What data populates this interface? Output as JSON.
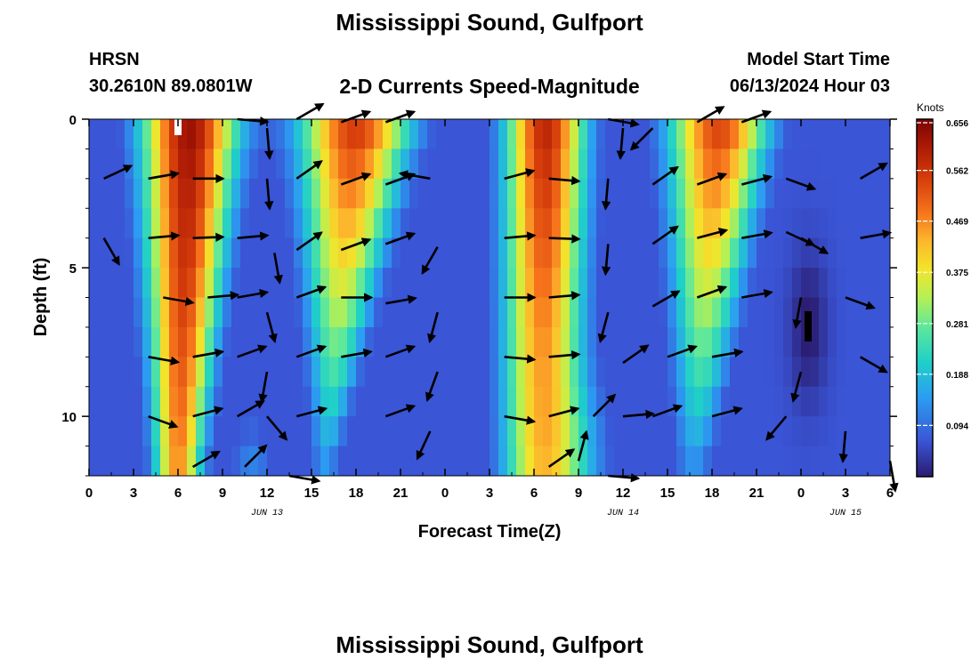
{
  "page": {
    "title": "Mississippi Sound, Gulfport",
    "station": "HRSN",
    "coords": "30.2610N  89.0801W",
    "subtitle": "2-D Currents Speed-Magnitude",
    "model_label": "Model Start Time",
    "model_time": "06/13/2024 Hour 03",
    "footer_title": "Mississippi Sound, Gulfport"
  },
  "chart_data": {
    "type": "heatmap",
    "title": "2-D Currents Speed-Magnitude",
    "xlabel": "Forecast Time(Z)",
    "ylabel": "Depth (ft)",
    "x_ticks": [
      {
        "hour": 0,
        "label": "0"
      },
      {
        "hour": 3,
        "label": "3"
      },
      {
        "hour": 6,
        "label": "6"
      },
      {
        "hour": 9,
        "label": "9"
      },
      {
        "hour": 12,
        "label": "12"
      },
      {
        "hour": 15,
        "label": "15"
      },
      {
        "hour": 18,
        "label": "18"
      },
      {
        "hour": 21,
        "label": "21"
      },
      {
        "hour": 24,
        "label": "0"
      },
      {
        "hour": 27,
        "label": "3"
      },
      {
        "hour": 30,
        "label": "6"
      },
      {
        "hour": 33,
        "label": "9"
      },
      {
        "hour": 36,
        "label": "12"
      },
      {
        "hour": 39,
        "label": "15"
      },
      {
        "hour": 42,
        "label": "18"
      },
      {
        "hour": 45,
        "label": "21"
      },
      {
        "hour": 48,
        "label": "0"
      },
      {
        "hour": 51,
        "label": "3"
      },
      {
        "hour": 54,
        "label": "6"
      }
    ],
    "date_labels": [
      {
        "hour": 12,
        "label": "JUN 13"
      },
      {
        "hour": 36,
        "label": "JUN 14"
      },
      {
        "hour": 51,
        "label": "JUN 15"
      }
    ],
    "y_ticks": [
      0,
      5,
      10
    ],
    "xlim": [
      0,
      54
    ],
    "ylim": [
      0,
      12
    ],
    "colorbar": {
      "unit": "Knots",
      "min": 0,
      "max": 0.656,
      "ticks": [
        "0.656",
        "0.562",
        "0.469",
        "0.375",
        "0.281",
        "0.188",
        "0.094"
      ],
      "tick_values": [
        0.656,
        0.562,
        0.469,
        0.375,
        0.281,
        0.188,
        0.094
      ]
    },
    "vectors": [
      {
        "t": 1,
        "d": 2,
        "dir": 65
      },
      {
        "t": 4,
        "d": 2,
        "dir": 80
      },
      {
        "t": 7,
        "d": 2,
        "dir": 90
      },
      {
        "t": 10,
        "d": 0,
        "dir": 95
      },
      {
        "t": 12,
        "d": 0.3,
        "dir": 175
      },
      {
        "t": 14,
        "d": 0,
        "dir": 60
      },
      {
        "t": 17,
        "d": 0.1,
        "dir": 70
      },
      {
        "t": 20,
        "d": 0.1,
        "dir": 70
      },
      {
        "t": 23,
        "d": 2,
        "dir": 280
      },
      {
        "t": 28,
        "d": 2,
        "dir": 75
      },
      {
        "t": 31,
        "d": 2,
        "dir": 95
      },
      {
        "t": 35,
        "d": 0,
        "dir": 100
      },
      {
        "t": 36,
        "d": 0.3,
        "dir": 185
      },
      {
        "t": 38,
        "d": 0.3,
        "dir": 225
      },
      {
        "t": 41,
        "d": 0.1,
        "dir": 60
      },
      {
        "t": 44,
        "d": 0.1,
        "dir": 70
      },
      {
        "t": 47,
        "d": 2,
        "dir": 110
      },
      {
        "t": 52,
        "d": 2,
        "dir": 60
      },
      {
        "t": 1,
        "d": 4,
        "dir": 150
      },
      {
        "t": 4,
        "d": 4,
        "dir": 85
      },
      {
        "t": 7,
        "d": 4,
        "dir": 88
      },
      {
        "t": 10,
        "d": 4,
        "dir": 85
      },
      {
        "t": 12,
        "d": 2,
        "dir": 175
      },
      {
        "t": 14,
        "d": 2,
        "dir": 55
      },
      {
        "t": 17,
        "d": 2.2,
        "dir": 70
      },
      {
        "t": 20,
        "d": 2.2,
        "dir": 70
      },
      {
        "t": 23.5,
        "d": 4.3,
        "dir": 210
      },
      {
        "t": 28,
        "d": 4,
        "dir": 85
      },
      {
        "t": 31,
        "d": 4,
        "dir": 92
      },
      {
        "t": 35,
        "d": 2,
        "dir": 185
      },
      {
        "t": 38,
        "d": 2.2,
        "dir": 55
      },
      {
        "t": 41,
        "d": 2.2,
        "dir": 70
      },
      {
        "t": 44,
        "d": 2.2,
        "dir": 75
      },
      {
        "t": 48,
        "d": 4,
        "dir": 120
      },
      {
        "t": 52,
        "d": 4,
        "dir": 80
      },
      {
        "t": 5,
        "d": 6,
        "dir": 100
      },
      {
        "t": 8,
        "d": 6,
        "dir": 85
      },
      {
        "t": 10,
        "d": 6,
        "dir": 80
      },
      {
        "t": 12.5,
        "d": 4.5,
        "dir": 170
      },
      {
        "t": 14,
        "d": 4.4,
        "dir": 55
      },
      {
        "t": 17,
        "d": 4.4,
        "dir": 70
      },
      {
        "t": 20,
        "d": 4.2,
        "dir": 70
      },
      {
        "t": 23.5,
        "d": 6.5,
        "dir": 195
      },
      {
        "t": 28,
        "d": 6,
        "dir": 90
      },
      {
        "t": 31,
        "d": 6,
        "dir": 85
      },
      {
        "t": 35,
        "d": 4.2,
        "dir": 185
      },
      {
        "t": 38,
        "d": 4.2,
        "dir": 55
      },
      {
        "t": 41,
        "d": 4,
        "dir": 75
      },
      {
        "t": 44,
        "d": 4,
        "dir": 80
      },
      {
        "t": 47,
        "d": 3.8,
        "dir": 115
      },
      {
        "t": 51,
        "d": 6,
        "dir": 110
      },
      {
        "t": 4,
        "d": 8,
        "dir": 100
      },
      {
        "t": 7,
        "d": 8,
        "dir": 80
      },
      {
        "t": 10,
        "d": 8,
        "dir": 70
      },
      {
        "t": 12,
        "d": 6.5,
        "dir": 165
      },
      {
        "t": 14,
        "d": 6,
        "dir": 70
      },
      {
        "t": 17,
        "d": 6,
        "dir": 90
      },
      {
        "t": 20,
        "d": 6.2,
        "dir": 80
      },
      {
        "t": 23.5,
        "d": 8.5,
        "dir": 200
      },
      {
        "t": 28,
        "d": 8,
        "dir": 95
      },
      {
        "t": 31,
        "d": 8,
        "dir": 85
      },
      {
        "t": 35,
        "d": 6.5,
        "dir": 195
      },
      {
        "t": 38,
        "d": 6.3,
        "dir": 60
      },
      {
        "t": 41,
        "d": 6,
        "dir": 70
      },
      {
        "t": 44,
        "d": 6,
        "dir": 80
      },
      {
        "t": 48,
        "d": 6,
        "dir": 190
      },
      {
        "t": 52,
        "d": 8,
        "dir": 120
      },
      {
        "t": 4,
        "d": 10,
        "dir": 110
      },
      {
        "t": 7,
        "d": 10,
        "dir": 75
      },
      {
        "t": 10,
        "d": 10,
        "dir": 60
      },
      {
        "t": 12,
        "d": 8.5,
        "dir": 190
      },
      {
        "t": 14,
        "d": 8,
        "dir": 70
      },
      {
        "t": 17,
        "d": 8,
        "dir": 80
      },
      {
        "t": 20,
        "d": 8,
        "dir": 70
      },
      {
        "t": 23,
        "d": 10.5,
        "dir": 205
      },
      {
        "t": 28,
        "d": 10,
        "dir": 100
      },
      {
        "t": 31,
        "d": 10,
        "dir": 75
      },
      {
        "t": 34,
        "d": 10,
        "dir": 45
      },
      {
        "t": 36,
        "d": 8.2,
        "dir": 55
      },
      {
        "t": 39,
        "d": 8,
        "dir": 70
      },
      {
        "t": 42,
        "d": 8,
        "dir": 80
      },
      {
        "t": 48,
        "d": 8.5,
        "dir": 195
      },
      {
        "t": 51,
        "d": 10.5,
        "dir": 185
      },
      {
        "t": 7,
        "d": 11.7,
        "dir": 60
      },
      {
        "t": 10.5,
        "d": 11.7,
        "dir": 45
      },
      {
        "t": 12,
        "d": 10,
        "dir": 140
      },
      {
        "t": 14,
        "d": 10,
        "dir": 75
      },
      {
        "t": 20,
        "d": 10,
        "dir": 70
      },
      {
        "t": 31,
        "d": 11.7,
        "dir": 55
      },
      {
        "t": 33,
        "d": 11.5,
        "dir": 15
      },
      {
        "t": 36,
        "d": 10,
        "dir": 85
      },
      {
        "t": 38,
        "d": 10,
        "dir": 70
      },
      {
        "t": 42,
        "d": 10,
        "dir": 75
      },
      {
        "t": 47,
        "d": 10,
        "dir": 220
      },
      {
        "t": 13.5,
        "d": 12,
        "dir": 100
      },
      {
        "t": 35,
        "d": 12,
        "dir": 95
      },
      {
        "t": 54,
        "d": 11.5,
        "dir": 170
      }
    ]
  }
}
